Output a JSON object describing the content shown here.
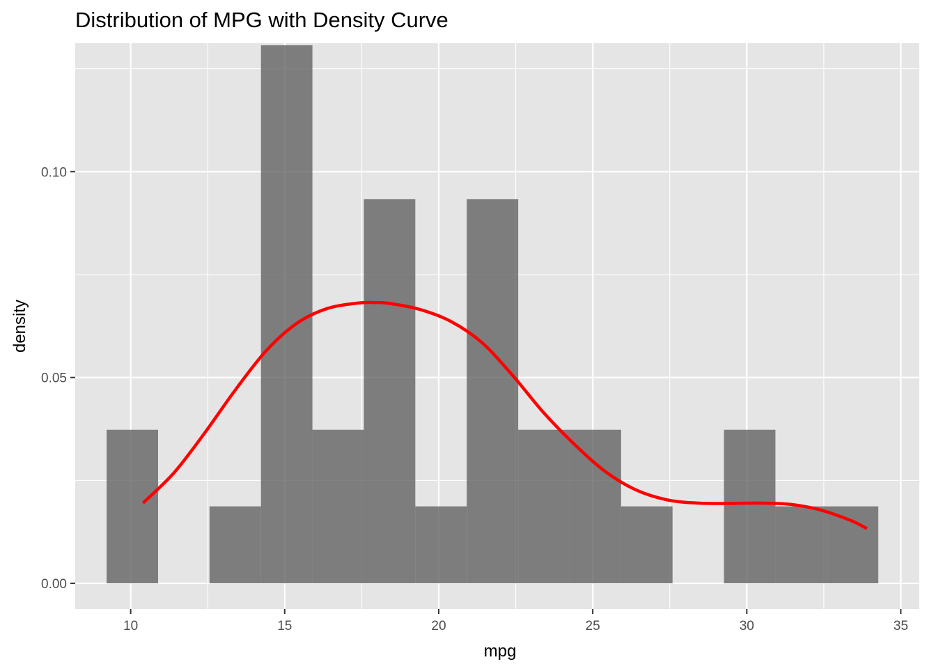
{
  "chart_data": {
    "type": "histogram",
    "title": "Distribution of MPG with Density Curve",
    "xlabel": "mpg",
    "ylabel": "density",
    "xlim": [
      8.2,
      35.6
    ],
    "ylim": [
      -0.00625,
      0.1312
    ],
    "x_ticks": [
      10,
      15,
      20,
      25,
      30,
      35
    ],
    "x_tick_labels": [
      "10",
      "15",
      "20",
      "25",
      "30",
      "35"
    ],
    "y_ticks": [
      0.0,
      0.05,
      0.1
    ],
    "y_tick_labels": [
      "0.00",
      "0.05",
      "0.10"
    ],
    "grid": true,
    "colors": {
      "panel_background": "#e5e5e5",
      "gridline": "#ffffff",
      "bars": "#595959",
      "density_curve": "#ff0000"
    },
    "bins": [
      {
        "x0": 9.22,
        "x1": 10.89,
        "density": 0.0373
      },
      {
        "x0": 12.56,
        "x1": 14.23,
        "density": 0.0187
      },
      {
        "x0": 14.23,
        "x1": 15.9,
        "density": 0.1307
      },
      {
        "x0": 15.9,
        "x1": 17.57,
        "density": 0.0373
      },
      {
        "x0": 17.57,
        "x1": 19.24,
        "density": 0.0933
      },
      {
        "x0": 19.24,
        "x1": 20.91,
        "density": 0.0187
      },
      {
        "x0": 20.91,
        "x1": 22.58,
        "density": 0.0933
      },
      {
        "x0": 22.58,
        "x1": 24.25,
        "density": 0.0373
      },
      {
        "x0": 24.25,
        "x1": 25.92,
        "density": 0.0373
      },
      {
        "x0": 25.92,
        "x1": 27.59,
        "density": 0.0187
      },
      {
        "x0": 29.26,
        "x1": 30.93,
        "density": 0.0373
      },
      {
        "x0": 30.93,
        "x1": 32.6,
        "density": 0.0187
      },
      {
        "x0": 32.6,
        "x1": 34.27,
        "density": 0.0187
      }
    ],
    "density_curve": {
      "x": [
        10.4,
        11.4,
        12.4,
        13.4,
        14.4,
        15.4,
        16.4,
        17.4,
        17.9,
        18.4,
        19.4,
        20.4,
        21.4,
        22.4,
        23.4,
        24.4,
        25.4,
        26.4,
        27.4,
        28.4,
        29.4,
        30.4,
        31.4,
        32.4,
        33.4,
        33.9
      ],
      "y": [
        0.0195,
        0.0268,
        0.0365,
        0.047,
        0.0565,
        0.0632,
        0.0668,
        0.0681,
        0.0682,
        0.068,
        0.0665,
        0.0636,
        0.0585,
        0.0505,
        0.0415,
        0.0338,
        0.0272,
        0.0227,
        0.0203,
        0.0195,
        0.0194,
        0.0195,
        0.0192,
        0.0178,
        0.0152,
        0.0133
      ]
    }
  }
}
